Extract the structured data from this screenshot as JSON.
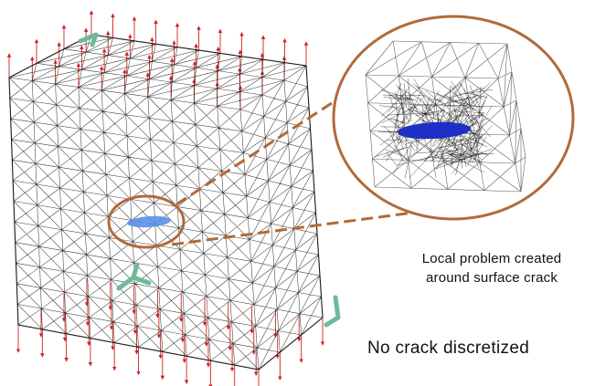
{
  "captions": {
    "local_problem_line1": "Local problem created",
    "local_problem_line2": "around surface crack",
    "no_crack": "No crack discretized"
  },
  "colors": {
    "mesh": "#1a1a1a",
    "zoom_mesh": "#3a3a3a",
    "load_arrows": "#cc2222",
    "crack_global": "#5b8fe8",
    "crack_local": "#1e2fc8",
    "highlight_ellipse": "#b06a3a",
    "supports": "#6fb89a"
  },
  "icons": {
    "load": "red-arrow-icon",
    "support": "green-support-icon"
  }
}
